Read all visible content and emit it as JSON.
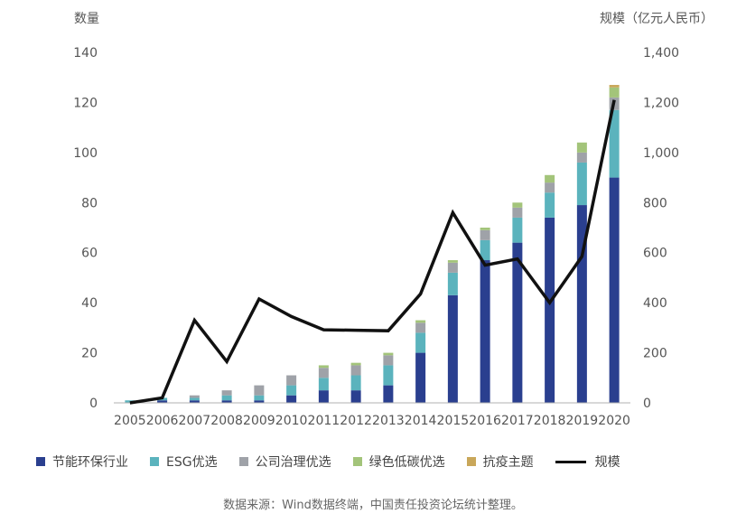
{
  "chart_data": {
    "type": "bar",
    "stacked": true,
    "ylabel_left": "数量",
    "ylabel_right": "规模（亿元人民币）",
    "ylim_left": [
      0,
      140
    ],
    "ylim_right": [
      0,
      1400
    ],
    "yticks_left": [
      "0",
      "20",
      "40",
      "60",
      "80",
      "100",
      "120",
      "140"
    ],
    "yticks_right": [
      "0",
      "200",
      "400",
      "600",
      "800",
      "1,000",
      "1,200",
      "1,400"
    ],
    "categories": [
      "2005",
      "2006",
      "2007",
      "2008",
      "2009",
      "2010",
      "2011",
      "2012",
      "2013",
      "2014",
      "2015",
      "2016",
      "2017",
      "2018",
      "2019",
      "2020"
    ],
    "series": [
      {
        "name": "节能环保行业",
        "color": "#2a3f8f",
        "values": [
          0,
          1,
          1,
          1,
          1,
          3,
          5,
          5,
          7,
          20,
          43,
          57,
          64,
          74,
          79,
          90
        ]
      },
      {
        "name": "ESG优选",
        "color": "#5bb3bd",
        "values": [
          1,
          1,
          1,
          2,
          2,
          4,
          5,
          6,
          8,
          8,
          9,
          8,
          10,
          10,
          17,
          27
        ]
      },
      {
        "name": "公司治理优选",
        "color": "#9fa2a8",
        "values": [
          0,
          0,
          1,
          2,
          4,
          4,
          4,
          4,
          4,
          4,
          4,
          4,
          4,
          4,
          4,
          5
        ]
      },
      {
        "name": "绿色低碳优选",
        "color": "#a3c47a",
        "values": [
          0,
          0,
          0,
          0,
          0,
          0,
          1,
          1,
          1,
          1,
          1,
          1,
          2,
          3,
          4,
          4
        ]
      },
      {
        "name": "抗疫主题",
        "color": "#c9a75a",
        "values": [
          0,
          0,
          0,
          0,
          0,
          0,
          0,
          0,
          0,
          0,
          0,
          0,
          0,
          0,
          0,
          1
        ]
      }
    ],
    "line": {
      "name": "规模",
      "color": "#111111",
      "axis": "right",
      "values": [
        0,
        20,
        330,
        165,
        415,
        345,
        292,
        290,
        288,
        435,
        760,
        550,
        575,
        400,
        585,
        1210
      ]
    },
    "grid": false,
    "legend_position": "bottom"
  },
  "source_text": "数据来源：Wind数据终端，中国责任投资论坛统计整理。"
}
